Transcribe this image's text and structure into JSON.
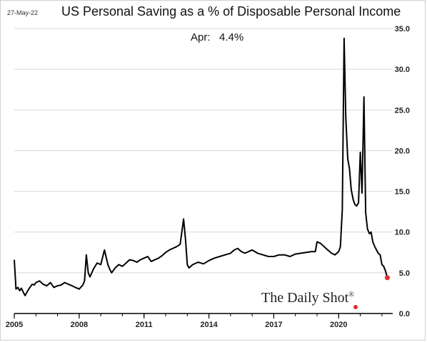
{
  "header": {
    "date": "27-May-22",
    "title": "US Personal Saving as a % of Disposable Personal Income",
    "annotation": "Apr:   4.4%"
  },
  "brand": {
    "name": "The Daily Shot",
    "mark": "®"
  },
  "colors": {
    "line": "#000000",
    "grid": "#d9d9d9",
    "last_point": "#e03030"
  },
  "chart_data": {
    "type": "line",
    "title": "US Personal Saving as a % of Disposable Personal Income",
    "xlabel": "",
    "ylabel": "",
    "xlim": [
      2005.0,
      2022.5
    ],
    "ylim": [
      0,
      35
    ],
    "y_ticks": [
      0.0,
      5.0,
      10.0,
      15.0,
      20.0,
      25.0,
      30.0,
      35.0
    ],
    "y_tick_labels": [
      "0.0",
      "5.0",
      "10.0",
      "15.0",
      "20.0",
      "25.0",
      "30.0",
      "35.0"
    ],
    "x_ticks": [
      2005,
      2008,
      2011,
      2014,
      2017,
      2020
    ],
    "x_tick_labels": [
      "2005",
      "2008",
      "2011",
      "2014",
      "2017",
      "2020"
    ],
    "y_axis_position": "right",
    "grid": "horizontal",
    "series": [
      {
        "x": [
          2005.0,
          2005.08,
          2005.17,
          2005.25,
          2005.33,
          2005.42,
          2005.5,
          2005.58,
          2005.67,
          2005.75,
          2005.83,
          2005.92,
          2006.0,
          2006.17,
          2006.33,
          2006.5,
          2006.67,
          2006.83,
          2007.0,
          2007.17,
          2007.33,
          2007.5,
          2007.67,
          2007.83,
          2008.0,
          2008.17,
          2008.25,
          2008.33,
          2008.42,
          2008.5,
          2008.67,
          2008.83,
          2009.0,
          2009.17,
          2009.33,
          2009.42,
          2009.5,
          2009.67,
          2009.83,
          2010.0,
          2010.17,
          2010.33,
          2010.5,
          2010.67,
          2010.83,
          2011.0,
          2011.17,
          2011.33,
          2011.5,
          2011.67,
          2011.83,
          2012.0,
          2012.17,
          2012.33,
          2012.5,
          2012.67,
          2012.83,
          2012.92,
          2013.0,
          2013.08,
          2013.25,
          2013.5,
          2013.75,
          2014.0,
          2014.25,
          2014.5,
          2014.75,
          2015.0,
          2015.17,
          2015.33,
          2015.5,
          2015.67,
          2015.83,
          2016.0,
          2016.25,
          2016.5,
          2016.75,
          2017.0,
          2017.25,
          2017.5,
          2017.75,
          2018.0,
          2018.25,
          2018.5,
          2018.75,
          2018.92,
          2019.0,
          2019.17,
          2019.33,
          2019.5,
          2019.67,
          2019.83,
          2020.0,
          2020.08,
          2020.17,
          2020.25,
          2020.33,
          2020.42,
          2020.5,
          2020.58,
          2020.67,
          2020.75,
          2020.83,
          2020.92,
          2021.0,
          2021.08,
          2021.17,
          2021.25,
          2021.33,
          2021.42,
          2021.5,
          2021.58,
          2021.67,
          2021.75,
          2021.83,
          2021.92,
          2022.0,
          2022.08,
          2022.17,
          2022.25
        ],
        "y": [
          6.6,
          3.0,
          3.2,
          2.8,
          3.1,
          2.6,
          2.2,
          2.6,
          3.0,
          3.3,
          3.6,
          3.5,
          3.8,
          4.0,
          3.6,
          3.4,
          3.8,
          3.2,
          3.4,
          3.5,
          3.8,
          3.6,
          3.4,
          3.2,
          3.0,
          3.5,
          4.0,
          7.2,
          5.0,
          4.5,
          5.5,
          6.2,
          6.0,
          7.8,
          6.0,
          5.4,
          5.0,
          5.6,
          6.0,
          5.8,
          6.2,
          6.6,
          6.5,
          6.3,
          6.6,
          6.8,
          7.0,
          6.4,
          6.6,
          6.8,
          7.1,
          7.5,
          7.8,
          8.0,
          8.2,
          8.5,
          11.6,
          9.0,
          6.0,
          5.6,
          6.0,
          6.3,
          6.1,
          6.5,
          6.8,
          7.0,
          7.2,
          7.4,
          7.8,
          8.0,
          7.6,
          7.4,
          7.6,
          7.8,
          7.4,
          7.2,
          7.0,
          7.0,
          7.2,
          7.2,
          7.0,
          7.3,
          7.4,
          7.5,
          7.6,
          7.6,
          8.8,
          8.6,
          8.2,
          7.8,
          7.4,
          7.2,
          7.6,
          8.2,
          12.8,
          33.8,
          24.0,
          19.0,
          17.8,
          15.2,
          14.0,
          13.4,
          13.2,
          13.6,
          19.8,
          14.8,
          26.6,
          12.4,
          10.4,
          9.8,
          10.0,
          8.8,
          8.2,
          7.8,
          7.4,
          7.2,
          6.0,
          5.8,
          5.2,
          4.4
        ]
      }
    ],
    "last_value": 4.4
  }
}
